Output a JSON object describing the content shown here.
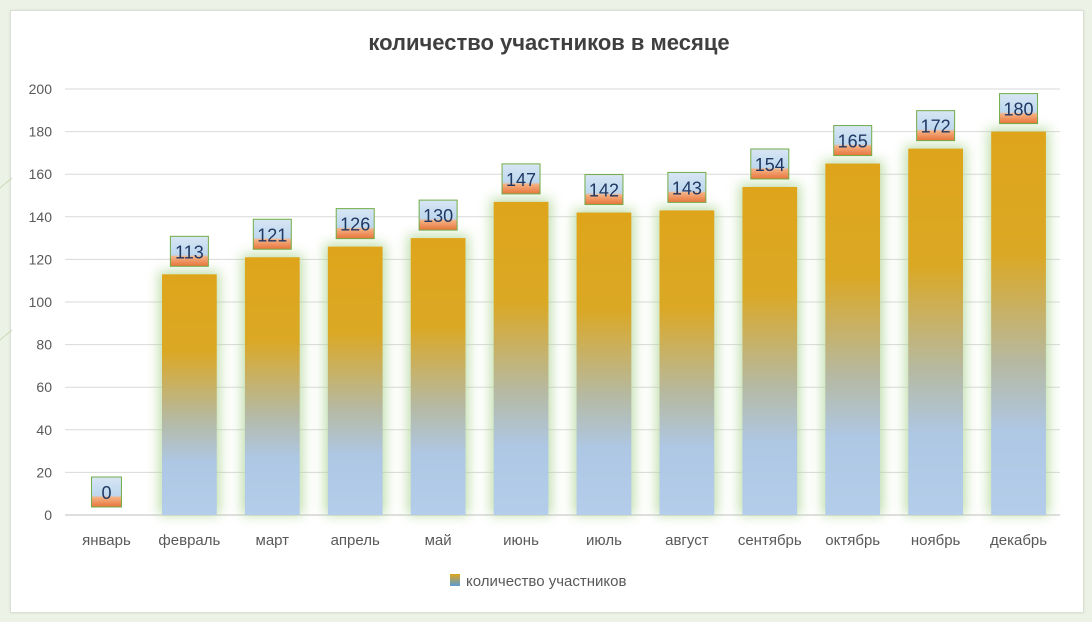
{
  "chart_data": {
    "type": "bar",
    "title": "количество участников в месяце",
    "categories": [
      "январь",
      "февраль",
      "март",
      "апрель",
      "май",
      "июнь",
      "июль",
      "август",
      "сентябрь",
      "октябрь",
      "ноябрь",
      "декабрь"
    ],
    "series": [
      {
        "name": "количество участников",
        "values": [
          0,
          113,
          121,
          126,
          130,
          147,
          142,
          143,
          154,
          165,
          172,
          180
        ]
      }
    ],
    "y_ticks": [
      "0",
      "20",
      "40",
      "60",
      "80",
      "100",
      "120",
      "140",
      "160",
      "180",
      "200"
    ],
    "ylim": [
      0,
      200
    ],
    "grid": true,
    "legend_position": "bottom",
    "data_labels": true,
    "colors": {
      "bar_top": "#dea51b",
      "bar_bottom": "#b3cdea",
      "bar_glow": "#a9d18e",
      "label_top": "#bdd7ee",
      "label_bottom": "#f4b183",
      "label_border": "#70ad47",
      "grid": "#d9d9d9"
    }
  }
}
